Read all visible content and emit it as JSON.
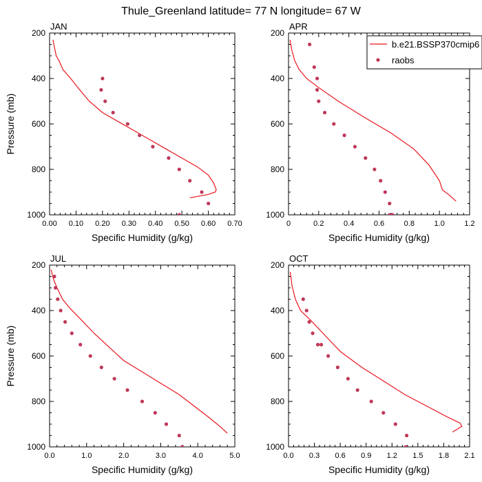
{
  "title": "Thule_Greenland  latitude= 77 N longitude= 67 W",
  "legend": {
    "model_label": "b.e21.BSSP370cmip6",
    "obs_label": "raobs",
    "model_color": "#e8141c",
    "obs_color": "#c0395a"
  },
  "chart_data": [
    {
      "type": "line",
      "panel": "JAN",
      "xlabel": "Specific Humidity (g/kg)",
      "ylabel": "Pressure (mb)",
      "xlim": [
        0,
        0.7
      ],
      "xticks": [
        "0.00",
        "0.10",
        "0.20",
        "0.30",
        "0.40",
        "0.50",
        "0.60",
        "0.70"
      ],
      "ylim": [
        200,
        1000
      ],
      "yticks": [
        "200",
        "400",
        "600",
        "800",
        "1000"
      ],
      "series": [
        {
          "name": "b.e21.BSSP370cmip6",
          "x": [
            0.53,
            0.6,
            0.625,
            0.63,
            0.62,
            0.6,
            0.56,
            0.5,
            0.44,
            0.38,
            0.32,
            0.26,
            0.2,
            0.15,
            0.1,
            0.08,
            0.05,
            0.035,
            0.025,
            0.018,
            0.013
          ],
          "y": [
            925,
            910,
            900,
            890,
            860,
            825,
            790,
            750,
            710,
            670,
            630,
            590,
            550,
            500,
            430,
            400,
            360,
            320,
            300,
            260,
            230
          ]
        },
        {
          "name": "raobs",
          "x": [
            0.2,
            0.195,
            0.21,
            0.24,
            0.295,
            0.34,
            0.39,
            0.45,
            0.49,
            0.53,
            0.575,
            0.6,
            0.49
          ],
          "y": [
            400,
            450,
            500,
            550,
            600,
            650,
            700,
            750,
            800,
            850,
            900,
            950,
            1000
          ]
        }
      ]
    },
    {
      "type": "line",
      "panel": "APR",
      "xlabel": "Specific Humidity (g/kg)",
      "ylabel": "",
      "xlim": [
        0,
        1.2
      ],
      "xticks": [
        "0",
        "0.2",
        "0.4",
        "0.6",
        "0.8",
        "1.0",
        "1.2"
      ],
      "ylim": [
        200,
        1000
      ],
      "yticks": [
        "200",
        "400",
        "600",
        "800",
        "1000"
      ],
      "series": [
        {
          "name": "b.e21.BSSP370cmip6",
          "x": [
            1.11,
            1.06,
            1.02,
            1.0,
            0.93,
            0.83,
            0.68,
            0.5,
            0.33,
            0.2,
            0.12,
            0.07,
            0.04,
            0.02,
            0.01
          ],
          "y": [
            940,
            910,
            890,
            850,
            780,
            710,
            640,
            570,
            500,
            440,
            400,
            360,
            320,
            270,
            230
          ]
        },
        {
          "name": "raobs",
          "x": [
            0.14,
            0.17,
            0.19,
            0.19,
            0.2,
            0.24,
            0.3,
            0.37,
            0.44,
            0.51,
            0.57,
            0.61,
            0.64,
            0.67,
            0.69,
            0.67
          ],
          "y": [
            250,
            350,
            400,
            450,
            500,
            550,
            600,
            650,
            700,
            750,
            800,
            850,
            900,
            950,
            1000,
            1000
          ]
        }
      ]
    },
    {
      "type": "line",
      "panel": "JUL",
      "xlabel": "Specific Humidity (g/kg)",
      "ylabel": "Pressure (mb)",
      "xlim": [
        0,
        5.0
      ],
      "xticks": [
        "0.0",
        "1.0",
        "2.0",
        "3.0",
        "4.0",
        "5.0"
      ],
      "ylim": [
        200,
        1000
      ],
      "yticks": [
        "200",
        "400",
        "600",
        "800",
        "1000"
      ],
      "series": [
        {
          "name": "b.e21.BSSP370cmip6",
          "x": [
            4.8,
            4.6,
            4.3,
            3.9,
            3.5,
            3.0,
            2.5,
            2.0,
            1.6,
            1.2,
            0.85,
            0.55,
            0.35,
            0.2,
            0.1,
            0.04
          ],
          "y": [
            940,
            910,
            870,
            820,
            770,
            720,
            670,
            620,
            560,
            500,
            440,
            390,
            350,
            300,
            260,
            220
          ]
        },
        {
          "name": "raobs",
          "x": [
            0.13,
            0.16,
            0.22,
            0.3,
            0.42,
            0.6,
            0.83,
            1.1,
            1.4,
            1.75,
            2.1,
            2.5,
            2.85,
            3.15,
            3.5,
            3.58
          ],
          "y": [
            250,
            300,
            350,
            400,
            450,
            500,
            550,
            600,
            650,
            700,
            750,
            800,
            850,
            900,
            950,
            1000
          ]
        }
      ]
    },
    {
      "type": "line",
      "panel": "OCT",
      "xlabel": "Specific Humidity (g/kg)",
      "ylabel": "",
      "xlim": [
        0,
        2.1
      ],
      "xticks": [
        "0.0",
        "0.3",
        "0.6",
        "0.9",
        "1.2",
        "1.5",
        "1.8",
        "2.1"
      ],
      "ylim": [
        200,
        1000
      ],
      "yticks": [
        "200",
        "400",
        "600",
        "800",
        "1000"
      ],
      "series": [
        {
          "name": "b.e21.BSSP370cmip6",
          "x": [
            1.9,
            2.01,
            1.99,
            1.85,
            1.6,
            1.35,
            1.1,
            0.85,
            0.6,
            0.4,
            0.25,
            0.14,
            0.08,
            0.04,
            0.02
          ],
          "y": [
            935,
            910,
            895,
            870,
            820,
            770,
            710,
            650,
            580,
            500,
            440,
            400,
            350,
            290,
            230
          ]
        },
        {
          "name": "raobs",
          "x": [
            0.17,
            0.21,
            0.24,
            0.28,
            0.34,
            0.38,
            0.46,
            0.57,
            0.69,
            0.8,
            0.96,
            1.1,
            1.24,
            1.37,
            1.36
          ],
          "y": [
            350,
            400,
            450,
            500,
            550,
            550,
            600,
            650,
            700,
            750,
            800,
            850,
            900,
            950,
            1000
          ]
        }
      ]
    }
  ]
}
